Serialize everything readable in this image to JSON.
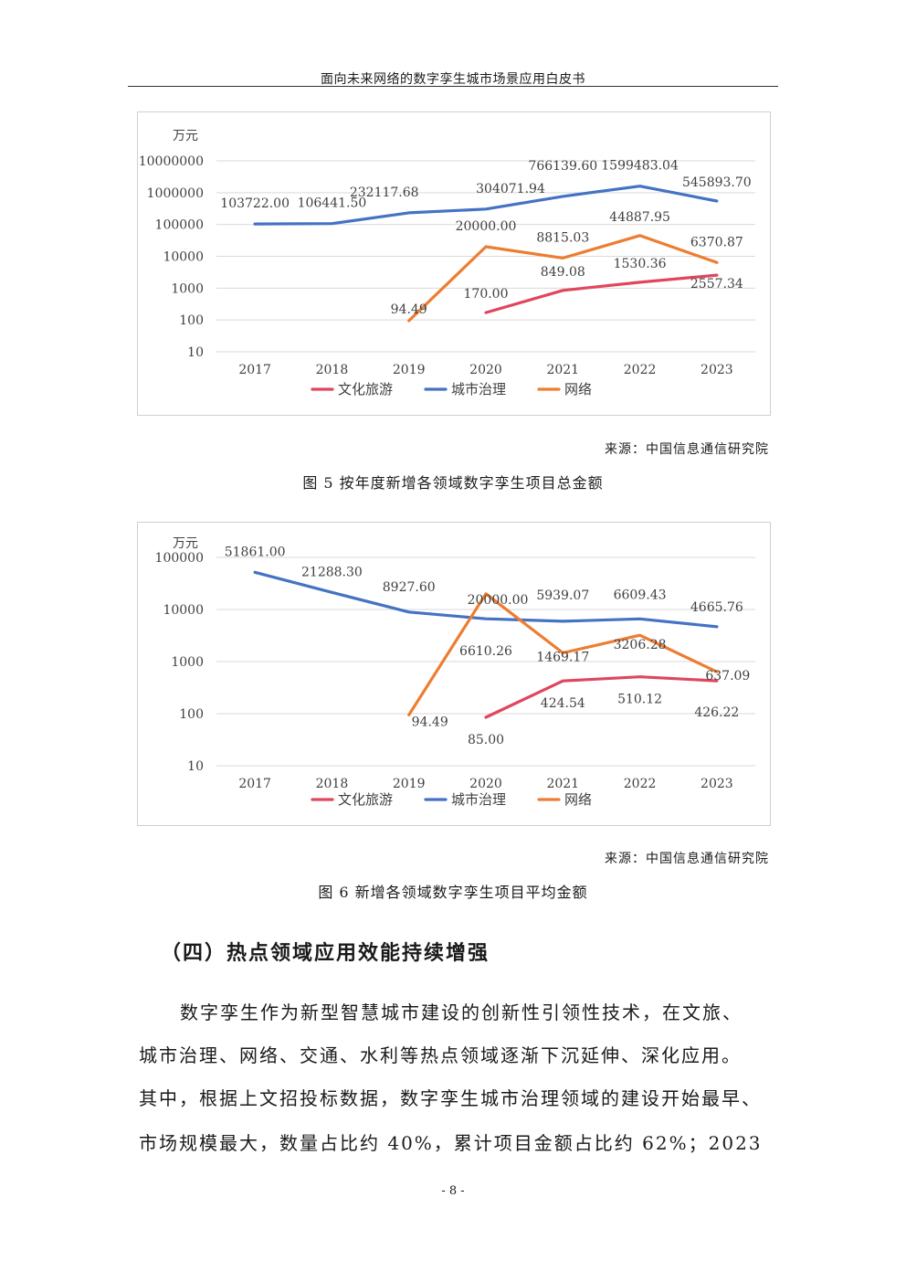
{
  "header": {
    "title": "面向未来网络的数字孪生城市场景应用白皮书"
  },
  "colors": {
    "culture": "#e0465e",
    "city": "#4472c4",
    "network": "#ed7d31"
  },
  "figures": [
    {
      "source": "来源：中国信息通信研究院",
      "caption": "图 5  按年度新增各领域数字孪生项目总金额"
    },
    {
      "source": "来源：中国信息通信研究院",
      "caption": "图 6  新增各领域数字孪生项目平均金额"
    }
  ],
  "chart_data": [
    {
      "type": "line",
      "yscale": "log",
      "yunit": "万元",
      "categories": [
        "2017",
        "2018",
        "2019",
        "2020",
        "2021",
        "2022",
        "2023"
      ],
      "yticks": [
        {
          "value": 10,
          "label": "10"
        },
        {
          "value": 100,
          "label": "100"
        },
        {
          "value": 1000,
          "label": "1000"
        },
        {
          "value": 10000,
          "label": "10000"
        },
        {
          "value": 100000,
          "label": "100000"
        },
        {
          "value": 1000000,
          "label": "1000000"
        },
        {
          "value": 10000000,
          "label": "10000000"
        }
      ],
      "ylim": [
        10,
        10000000
      ],
      "series": [
        {
          "key": "culture",
          "name": "文化旅游",
          "values": [
            null,
            null,
            null,
            170.0,
            849.08,
            1530.36,
            2557.34
          ],
          "labels": [
            null,
            null,
            null,
            "170.00",
            "849.08",
            "1530.36",
            "2557.34"
          ]
        },
        {
          "key": "city",
          "name": "城市治理",
          "values": [
            103722.0,
            106441.5,
            232117.68,
            304071.94,
            766139.6,
            1599483.04,
            545893.7
          ],
          "labels": [
            "103722.00",
            "106441.50",
            "232117.68",
            "304071.94",
            "766139.60",
            "1599483.04",
            "545893.70"
          ]
        },
        {
          "key": "network",
          "name": "网络",
          "values": [
            null,
            null,
            94.49,
            20000.0,
            8815.03,
            44887.95,
            6370.87
          ],
          "labels": [
            null,
            null,
            "94.49",
            "20000.00",
            "8815.03",
            "44887.95",
            "6370.87"
          ]
        }
      ],
      "legend": [
        "文化旅游",
        "城市治理",
        "网络"
      ]
    },
    {
      "type": "line",
      "yscale": "log",
      "yunit": "万元",
      "categories": [
        "2017",
        "2018",
        "2019",
        "2020",
        "2021",
        "2022",
        "2023"
      ],
      "yticks": [
        {
          "value": 10,
          "label": "10"
        },
        {
          "value": 100,
          "label": "100"
        },
        {
          "value": 1000,
          "label": "1000"
        },
        {
          "value": 10000,
          "label": "10000"
        },
        {
          "value": 100000,
          "label": "100000"
        }
      ],
      "ylim": [
        10,
        100000
      ],
      "series": [
        {
          "key": "culture",
          "name": "文化旅游",
          "values": [
            null,
            null,
            null,
            85.0,
            424.54,
            510.12,
            426.22
          ],
          "labels": [
            null,
            null,
            null,
            "85.00",
            "424.54",
            "510.12",
            "426.22"
          ]
        },
        {
          "key": "city",
          "name": "城市治理",
          "values": [
            51861.0,
            21288.3,
            8927.6,
            6610.26,
            5939.07,
            6609.43,
            4665.76
          ],
          "labels": [
            "51861.00",
            "21288.30",
            "8927.60",
            "6610.26",
            "5939.07",
            "6609.43",
            "4665.76"
          ]
        },
        {
          "key": "network",
          "name": "网络",
          "values": [
            null,
            null,
            94.49,
            20000.0,
            1469.17,
            3206.28,
            637.09
          ],
          "labels": [
            null,
            null,
            "94.49",
            "20000.00",
            "1469.17",
            "3206.28",
            "637.09"
          ]
        }
      ],
      "legend": [
        "文化旅游",
        "城市治理",
        "网络"
      ]
    }
  ],
  "section": {
    "heading": "（四）热点领域应用效能持续增强",
    "lines": [
      "数字孪生作为新型智慧城市建设的创新性引领性技术，在文旅、",
      "城市治理、网络、交通、水利等热点领域逐渐下沉延伸、深化应用。",
      "其中，根据上文招投标数据，数字孪生城市治理领域的建设开始最早、",
      "市场规模最大，数量占比约 40%，累计项目金额占比约 62%；2023"
    ]
  },
  "page_number": "- 8 -"
}
